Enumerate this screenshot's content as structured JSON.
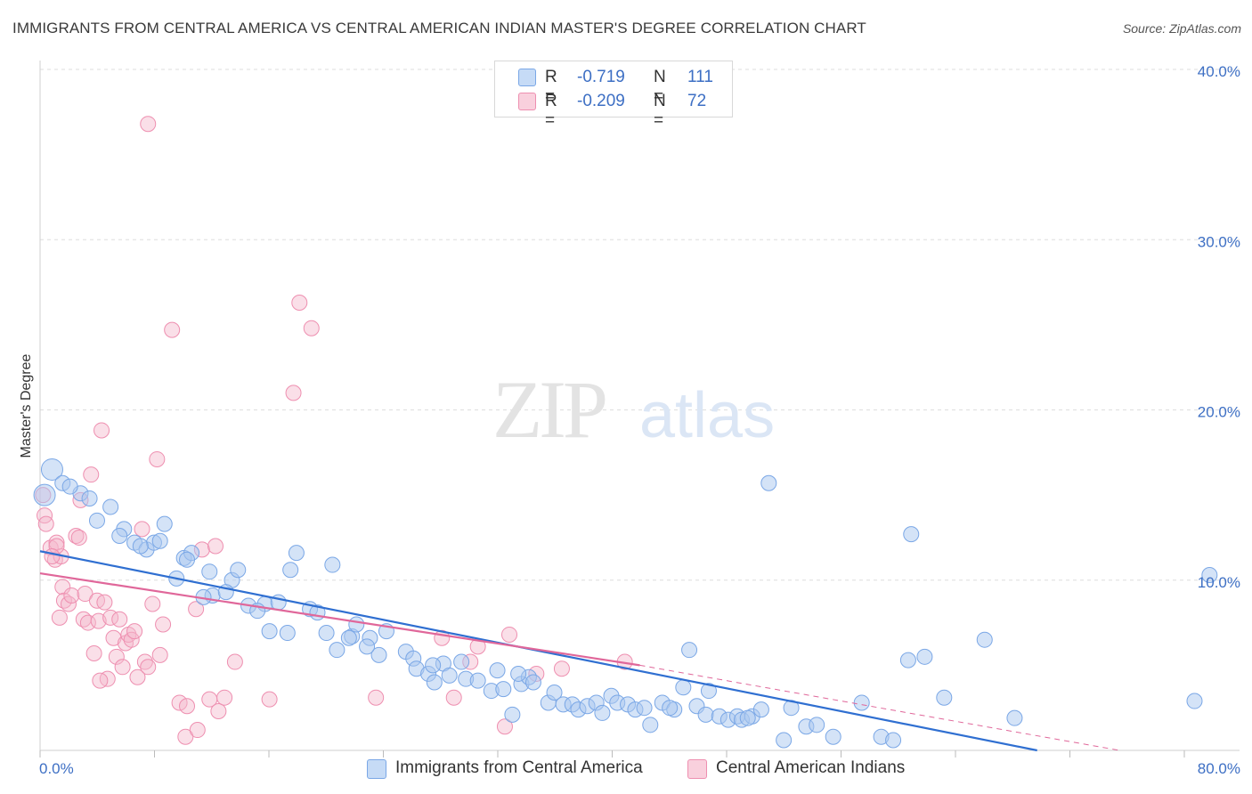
{
  "title": "IMMIGRANTS FROM CENTRAL AMERICA VS CENTRAL AMERICAN INDIAN MASTER'S DEGREE CORRELATION CHART",
  "source": "Source: ZipAtlas.com",
  "watermark": {
    "zip": "ZIP",
    "atlas": "atlas"
  },
  "legend": {
    "r_label": "R =",
    "n_label": "N =",
    "series1": {
      "r": "-0.719",
      "n": "111"
    },
    "series2": {
      "r": "-0.209",
      "n": "72"
    }
  },
  "colors": {
    "blue_fill": "#a9c8f0",
    "blue_stroke": "#7aa7e6",
    "blue_line": "#2f6fd1",
    "pink_fill": "#f5b8cc",
    "pink_stroke": "#ee8fb0",
    "pink_line": "#e0679a",
    "tick_text": "#3d6fc4",
    "grid": "#dedede"
  },
  "chart_data": {
    "type": "scatter",
    "title": "IMMIGRANTS FROM CENTRAL AMERICA VS CENTRAL AMERICAN INDIAN MASTER'S DEGREE CORRELATION CHART",
    "xlabel": "",
    "ylabel": "Master's Degree",
    "xlim": [
      0,
      80
    ],
    "ylim": [
      0,
      40
    ],
    "x_tick_labels": [
      "0.0%",
      "80.0%"
    ],
    "y_ticks": [
      10,
      20,
      30,
      40
    ],
    "y_tick_labels": [
      "10.0%",
      "20.0%",
      "30.0%",
      "40.0%"
    ],
    "grid": true,
    "series": [
      {
        "name": "Immigrants from Central America",
        "color": "#a9c8f0",
        "r": -0.719,
        "n": 111,
        "trend": {
          "x0": 0,
          "y0": 11.7,
          "x1": 66.5,
          "y1": 0,
          "dashed_to": null
        },
        "points": [
          [
            0.8,
            16.5
          ],
          [
            1.5,
            15.7
          ],
          [
            2.7,
            15.1
          ],
          [
            3.3,
            14.8
          ],
          [
            4.7,
            14.3
          ],
          [
            3.8,
            13.5
          ],
          [
            5.6,
            13.0
          ],
          [
            5.3,
            12.6
          ],
          [
            6.3,
            12.2
          ],
          [
            7.1,
            11.8
          ],
          [
            8.3,
            13.3
          ],
          [
            7.6,
            12.2
          ],
          [
            8.0,
            12.3
          ],
          [
            9.6,
            11.3
          ],
          [
            10.1,
            11.6
          ],
          [
            9.1,
            10.1
          ],
          [
            11.3,
            10.5
          ],
          [
            12.8,
            10.0
          ],
          [
            13.2,
            10.6
          ],
          [
            11.5,
            9.1
          ],
          [
            12.4,
            9.3
          ],
          [
            10.9,
            9.0
          ],
          [
            13.9,
            8.5
          ],
          [
            15.0,
            8.6
          ],
          [
            14.5,
            8.2
          ],
          [
            15.9,
            8.7
          ],
          [
            16.7,
            10.6
          ],
          [
            17.1,
            11.6
          ],
          [
            18.0,
            8.3
          ],
          [
            18.5,
            8.1
          ],
          [
            19.5,
            10.9
          ],
          [
            15.3,
            7.0
          ],
          [
            16.5,
            6.9
          ],
          [
            19.1,
            6.9
          ],
          [
            19.8,
            5.9
          ],
          [
            20.8,
            6.7
          ],
          [
            21.1,
            7.4
          ],
          [
            22.0,
            6.6
          ],
          [
            22.6,
            5.6
          ],
          [
            23.1,
            7.0
          ],
          [
            24.4,
            5.8
          ],
          [
            24.9,
            5.4
          ],
          [
            25.1,
            4.8
          ],
          [
            25.9,
            4.5
          ],
          [
            26.3,
            4.0
          ],
          [
            26.9,
            5.1
          ],
          [
            27.3,
            4.4
          ],
          [
            28.1,
            5.2
          ],
          [
            28.4,
            4.2
          ],
          [
            29.2,
            4.1
          ],
          [
            30.1,
            3.5
          ],
          [
            30.5,
            4.7
          ],
          [
            30.9,
            3.6
          ],
          [
            31.5,
            2.1
          ],
          [
            32.1,
            3.9
          ],
          [
            32.6,
            4.3
          ],
          [
            32.9,
            4.0
          ],
          [
            33.9,
            2.8
          ],
          [
            34.3,
            3.4
          ],
          [
            34.9,
            2.7
          ],
          [
            35.5,
            2.7
          ],
          [
            35.9,
            2.4
          ],
          [
            36.5,
            2.6
          ],
          [
            37.1,
            2.8
          ],
          [
            37.5,
            2.2
          ],
          [
            38.1,
            3.2
          ],
          [
            38.5,
            2.8
          ],
          [
            39.2,
            2.7
          ],
          [
            39.7,
            2.4
          ],
          [
            40.3,
            2.5
          ],
          [
            40.7,
            1.5
          ],
          [
            41.5,
            2.8
          ],
          [
            42.3,
            2.4
          ],
          [
            42.9,
            3.7
          ],
          [
            43.3,
            5.9
          ],
          [
            43.8,
            2.6
          ],
          [
            44.6,
            3.5
          ],
          [
            44.4,
            2.1
          ],
          [
            45.3,
            2.0
          ],
          [
            45.9,
            1.8
          ],
          [
            46.5,
            2.0
          ],
          [
            46.8,
            1.8
          ],
          [
            47.5,
            2.0
          ],
          [
            48.1,
            2.4
          ],
          [
            48.6,
            15.7
          ],
          [
            49.6,
            0.6
          ],
          [
            50.1,
            2.5
          ],
          [
            51.1,
            1.4
          ],
          [
            51.8,
            1.5
          ],
          [
            52.9,
            0.8
          ],
          [
            54.8,
            2.8
          ],
          [
            56.1,
            0.8
          ],
          [
            56.9,
            0.6
          ],
          [
            57.9,
            5.3
          ],
          [
            58.1,
            12.7
          ],
          [
            59.0,
            5.5
          ],
          [
            60.3,
            3.1
          ],
          [
            63.0,
            6.5
          ],
          [
            65.0,
            1.9
          ],
          [
            77.0,
            2.9
          ],
          [
            78.0,
            10.3
          ],
          [
            0.3,
            15.0
          ],
          [
            2.0,
            15.5
          ],
          [
            6.7,
            12.0
          ],
          [
            21.8,
            6.1
          ],
          [
            31.9,
            4.5
          ],
          [
            42.0,
            2.5
          ],
          [
            47.2,
            1.9
          ],
          [
            26.2,
            5.0
          ],
          [
            20.6,
            6.6
          ],
          [
            9.8,
            11.2
          ]
        ]
      },
      {
        "name": "Central American Indians",
        "color": "#f5b8cc",
        "r": -0.209,
        "n": 72,
        "trend": {
          "x0": 0,
          "y0": 10.4,
          "x1": 40.0,
          "y1": 5.0,
          "dashed_to": [
            72.0,
            0.0
          ]
        },
        "points": [
          [
            0.2,
            15.0
          ],
          [
            0.3,
            13.8
          ],
          [
            0.4,
            13.3
          ],
          [
            0.7,
            11.9
          ],
          [
            1.0,
            11.2
          ],
          [
            1.1,
            12.2
          ],
          [
            1.4,
            11.4
          ],
          [
            1.5,
            9.6
          ],
          [
            1.6,
            8.8
          ],
          [
            1.3,
            7.8
          ],
          [
            1.9,
            8.6
          ],
          [
            2.1,
            9.1
          ],
          [
            2.4,
            12.6
          ],
          [
            2.7,
            14.7
          ],
          [
            2.9,
            7.7
          ],
          [
            3.0,
            9.2
          ],
          [
            3.2,
            7.5
          ],
          [
            3.4,
            16.2
          ],
          [
            3.6,
            5.7
          ],
          [
            3.8,
            8.8
          ],
          [
            3.9,
            7.6
          ],
          [
            4.1,
            18.8
          ],
          [
            4.3,
            8.7
          ],
          [
            4.5,
            4.2
          ],
          [
            4.7,
            7.8
          ],
          [
            4.9,
            6.6
          ],
          [
            5.1,
            5.5
          ],
          [
            5.3,
            7.7
          ],
          [
            5.5,
            4.9
          ],
          [
            5.7,
            6.3
          ],
          [
            5.9,
            6.8
          ],
          [
            6.1,
            6.5
          ],
          [
            6.3,
            7.0
          ],
          [
            6.5,
            4.3
          ],
          [
            6.8,
            13.0
          ],
          [
            7.0,
            5.2
          ],
          [
            7.2,
            4.9
          ],
          [
            7.5,
            8.6
          ],
          [
            7.8,
            17.1
          ],
          [
            8.0,
            5.6
          ],
          [
            8.2,
            7.4
          ],
          [
            8.8,
            24.7
          ],
          [
            9.3,
            2.8
          ],
          [
            9.8,
            2.6
          ],
          [
            10.4,
            8.3
          ],
          [
            10.8,
            11.8
          ],
          [
            11.3,
            3.0
          ],
          [
            11.9,
            2.3
          ],
          [
            12.3,
            3.1
          ],
          [
            13.0,
            5.2
          ],
          [
            7.2,
            36.8
          ],
          [
            17.3,
            26.3
          ],
          [
            18.1,
            24.8
          ],
          [
            16.9,
            21.0
          ],
          [
            15.3,
            3.0
          ],
          [
            11.7,
            12.0
          ],
          [
            22.4,
            3.1
          ],
          [
            26.8,
            6.6
          ],
          [
            27.6,
            3.1
          ],
          [
            28.7,
            5.2
          ],
          [
            29.2,
            6.1
          ],
          [
            31.0,
            1.4
          ],
          [
            31.3,
            6.8
          ],
          [
            33.1,
            4.5
          ],
          [
            34.8,
            4.8
          ],
          [
            39.0,
            5.2
          ],
          [
            1.1,
            12.0
          ],
          [
            0.8,
            11.4
          ],
          [
            4.0,
            4.1
          ],
          [
            2.6,
            12.5
          ],
          [
            9.7,
            0.8
          ],
          [
            10.5,
            1.2
          ]
        ]
      }
    ]
  },
  "bottom_legend": {
    "item1": "Immigrants from Central America",
    "item2": "Central American Indians"
  }
}
